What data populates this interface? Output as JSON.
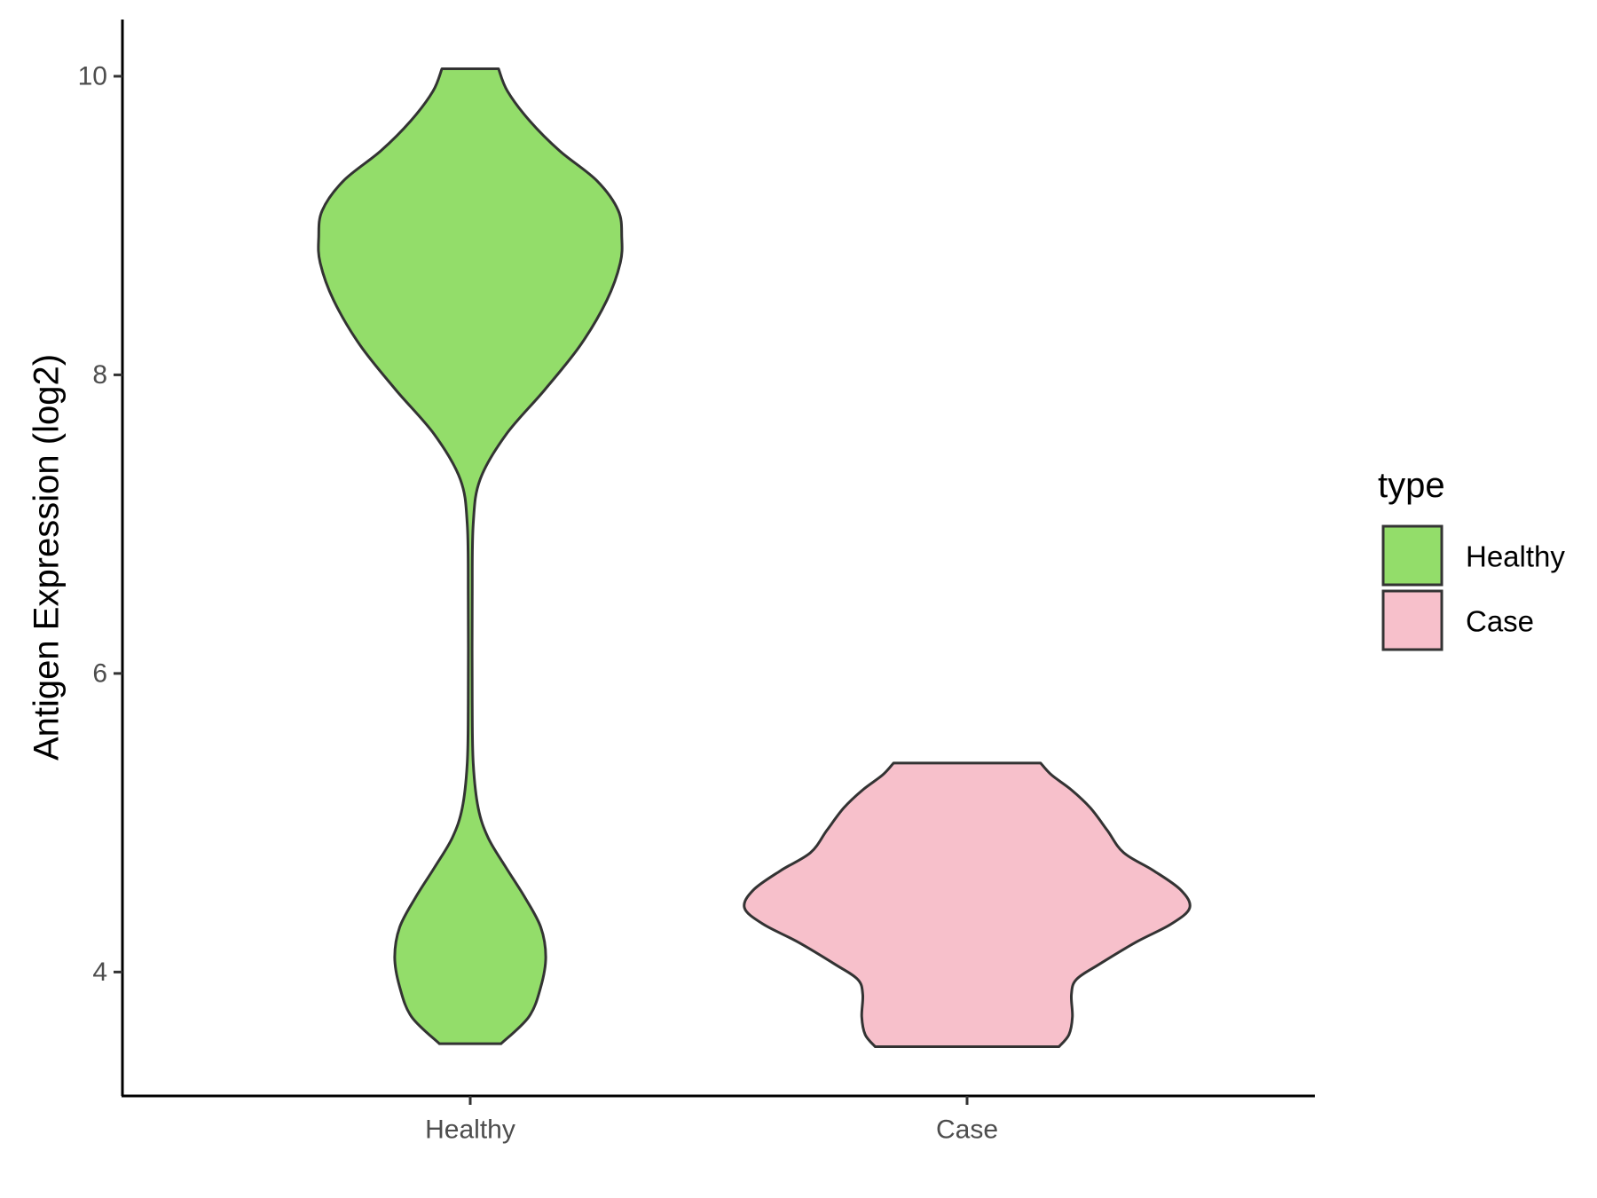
{
  "chart_data": {
    "type": "violin",
    "title": "",
    "xlabel": "",
    "ylabel": "Antigen Expression (log2)",
    "categories": [
      "Healthy",
      "Case"
    ],
    "ylim": [
      3.17,
      10.38
    ],
    "yticks": [
      4,
      6,
      8,
      10
    ],
    "grid": false,
    "legend": {
      "title": "type",
      "position": "right",
      "entries": [
        {
          "label": "Healthy",
          "color": "#93dd6a"
        },
        {
          "label": "Case",
          "color": "#f7c0cb"
        }
      ]
    },
    "series": [
      {
        "category": "Healthy",
        "color": "#93dd6a",
        "min": 3.52,
        "max": 10.05,
        "density_profile": [
          {
            "y": 3.52,
            "half_width": 0.062
          },
          {
            "y": 3.7,
            "half_width": 0.118
          },
          {
            "y": 3.9,
            "half_width": 0.142
          },
          {
            "y": 4.1,
            "half_width": 0.152
          },
          {
            "y": 4.3,
            "half_width": 0.142
          },
          {
            "y": 4.5,
            "half_width": 0.11
          },
          {
            "y": 4.7,
            "half_width": 0.072
          },
          {
            "y": 4.9,
            "half_width": 0.036
          },
          {
            "y": 5.1,
            "half_width": 0.016
          },
          {
            "y": 5.4,
            "half_width": 0.006
          },
          {
            "y": 5.8,
            "half_width": 0.004
          },
          {
            "y": 6.5,
            "half_width": 0.004
          },
          {
            "y": 7.0,
            "half_width": 0.006
          },
          {
            "y": 7.3,
            "half_width": 0.02
          },
          {
            "y": 7.6,
            "half_width": 0.072
          },
          {
            "y": 7.9,
            "half_width": 0.15
          },
          {
            "y": 8.2,
            "half_width": 0.222
          },
          {
            "y": 8.5,
            "half_width": 0.275
          },
          {
            "y": 8.75,
            "half_width": 0.302
          },
          {
            "y": 8.92,
            "half_width": 0.305
          },
          {
            "y": 9.1,
            "half_width": 0.298
          },
          {
            "y": 9.3,
            "half_width": 0.255
          },
          {
            "y": 9.5,
            "half_width": 0.18
          },
          {
            "y": 9.7,
            "half_width": 0.12
          },
          {
            "y": 9.9,
            "half_width": 0.075
          },
          {
            "y": 10.05,
            "half_width": 0.057
          }
        ]
      },
      {
        "category": "Case",
        "color": "#f7c0cb",
        "min": 3.5,
        "max": 5.4,
        "density_profile": [
          {
            "y": 3.5,
            "half_width": 0.185
          },
          {
            "y": 3.58,
            "half_width": 0.205
          },
          {
            "y": 3.7,
            "half_width": 0.212
          },
          {
            "y": 3.85,
            "half_width": 0.21
          },
          {
            "y": 3.95,
            "half_width": 0.22
          },
          {
            "y": 4.05,
            "half_width": 0.265
          },
          {
            "y": 4.2,
            "half_width": 0.34
          },
          {
            "y": 4.32,
            "half_width": 0.41
          },
          {
            "y": 4.43,
            "half_width": 0.448
          },
          {
            "y": 4.55,
            "half_width": 0.43
          },
          {
            "y": 4.68,
            "half_width": 0.375
          },
          {
            "y": 4.8,
            "half_width": 0.315
          },
          {
            "y": 4.95,
            "half_width": 0.282
          },
          {
            "y": 5.1,
            "half_width": 0.248
          },
          {
            "y": 5.22,
            "half_width": 0.21
          },
          {
            "y": 5.32,
            "half_width": 0.17
          },
          {
            "y": 5.4,
            "half_width": 0.148
          }
        ]
      }
    ]
  }
}
